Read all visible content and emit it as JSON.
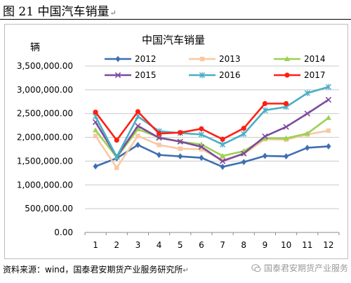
{
  "figure": {
    "title": "图 21 中国汽车销量",
    "source": "资料来源：wind，国泰君安期货产业服务研究所",
    "watermark": "国泰君安期货产业服务"
  },
  "chart_data": {
    "type": "line",
    "title": "中国汽车销量",
    "ylabel": "辆",
    "xlabel": "",
    "categories": [
      "1",
      "2",
      "3",
      "4",
      "5",
      "6",
      "7",
      "8",
      "9",
      "10",
      "11",
      "12"
    ],
    "ylim": [
      0,
      3500000
    ],
    "yticks": [
      0,
      500000,
      1000000,
      1500000,
      2000000,
      2500000,
      3000000,
      3500000
    ],
    "ytick_labels": [
      "0.00",
      "500,000.00",
      "1,000,000.00",
      "1,500,000.00",
      "2,000,000.00",
      "2,500,000.00",
      "3,000,000.00",
      "3,500,000.00"
    ],
    "grid": true,
    "legend_position": "top",
    "series": [
      {
        "name": "2012",
        "color": "#3f6fb0",
        "marker": "diamond",
        "values": [
          1390000,
          1560000,
          1840000,
          1630000,
          1600000,
          1570000,
          1380000,
          1480000,
          1610000,
          1600000,
          1780000,
          1810000
        ]
      },
      {
        "name": "2013",
        "color": "#f7c9a3",
        "marker": "square",
        "values": [
          2030000,
          1360000,
          2030000,
          1840000,
          1760000,
          1750000,
          1520000,
          1650000,
          1960000,
          1950000,
          2060000,
          2140000
        ]
      },
      {
        "name": "2014",
        "color": "#9bd152",
        "marker": "triangle",
        "values": [
          2150000,
          1580000,
          2170000,
          2000000,
          1910000,
          1850000,
          1610000,
          1710000,
          1980000,
          1980000,
          2080000,
          2410000
        ]
      },
      {
        "name": "2015",
        "color": "#7d4a9e",
        "marker": "x",
        "values": [
          2320000,
          1590000,
          2240000,
          1990000,
          1910000,
          1800000,
          1500000,
          1660000,
          2020000,
          2220000,
          2500000,
          2790000
        ]
      },
      {
        "name": "2016",
        "color": "#4aaec5",
        "marker": "star",
        "values": [
          2440000,
          1590000,
          2440000,
          2130000,
          2090000,
          2060000,
          1850000,
          2070000,
          2570000,
          2640000,
          2930000,
          3060000
        ]
      },
      {
        "name": "2017",
        "color": "#ff1f12",
        "marker": "circle",
        "values": [
          2530000,
          1940000,
          2540000,
          2080000,
          2100000,
          2180000,
          1960000,
          2190000,
          2710000,
          2710000,
          null,
          null
        ]
      }
    ]
  }
}
